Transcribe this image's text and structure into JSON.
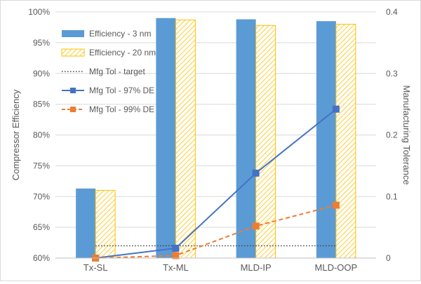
{
  "chart_data": {
    "type": "bar",
    "title": "",
    "categories": [
      "Tx-SL",
      "Tx-ML",
      "MLD-IP",
      "MLD-OOP"
    ],
    "ylabel": "Compressor Efficiency",
    "y2label": "Manufacturing Tolerance",
    "xlabel": "",
    "ylim": [
      0.6,
      1.0
    ],
    "y2lim": [
      0,
      0.4
    ],
    "yticks": [
      "60%",
      "65%",
      "70%",
      "75%",
      "80%",
      "85%",
      "90%",
      "95%",
      "100%"
    ],
    "y2ticks": [
      "0",
      "0.1",
      "0.2",
      "0.3",
      "0.4"
    ],
    "legend_position": "top-left",
    "bar_series": [
      {
        "name": "Efficiency - 3 nm",
        "axis": "left",
        "color": "#5b9bd5",
        "values": [
          0.713,
          0.99,
          0.988,
          0.985
        ]
      },
      {
        "name": "Efficiency - 20 nm",
        "axis": "left",
        "color": "#ffc000",
        "pattern": "hatch",
        "values": [
          0.71,
          0.987,
          0.978,
          0.98
        ]
      }
    ],
    "line_series": [
      {
        "name": "Mfg Tol - target",
        "axis": "right",
        "color": "#404040",
        "style": "dotted",
        "marker": "none",
        "values": [
          0.02,
          0.02,
          0.02,
          0.02
        ]
      },
      {
        "name": "Mfg Tol - 97% DE",
        "axis": "right",
        "color": "#4472c4",
        "style": "solid",
        "marker": "square",
        "values": [
          0.0,
          0.016,
          0.138,
          0.242
        ]
      },
      {
        "name": "Mfg Tol - 99% DE",
        "axis": "right",
        "color": "#ed7d31",
        "style": "dashed",
        "marker": "square",
        "values": [
          0.0,
          0.004,
          0.052,
          0.086
        ]
      }
    ]
  }
}
